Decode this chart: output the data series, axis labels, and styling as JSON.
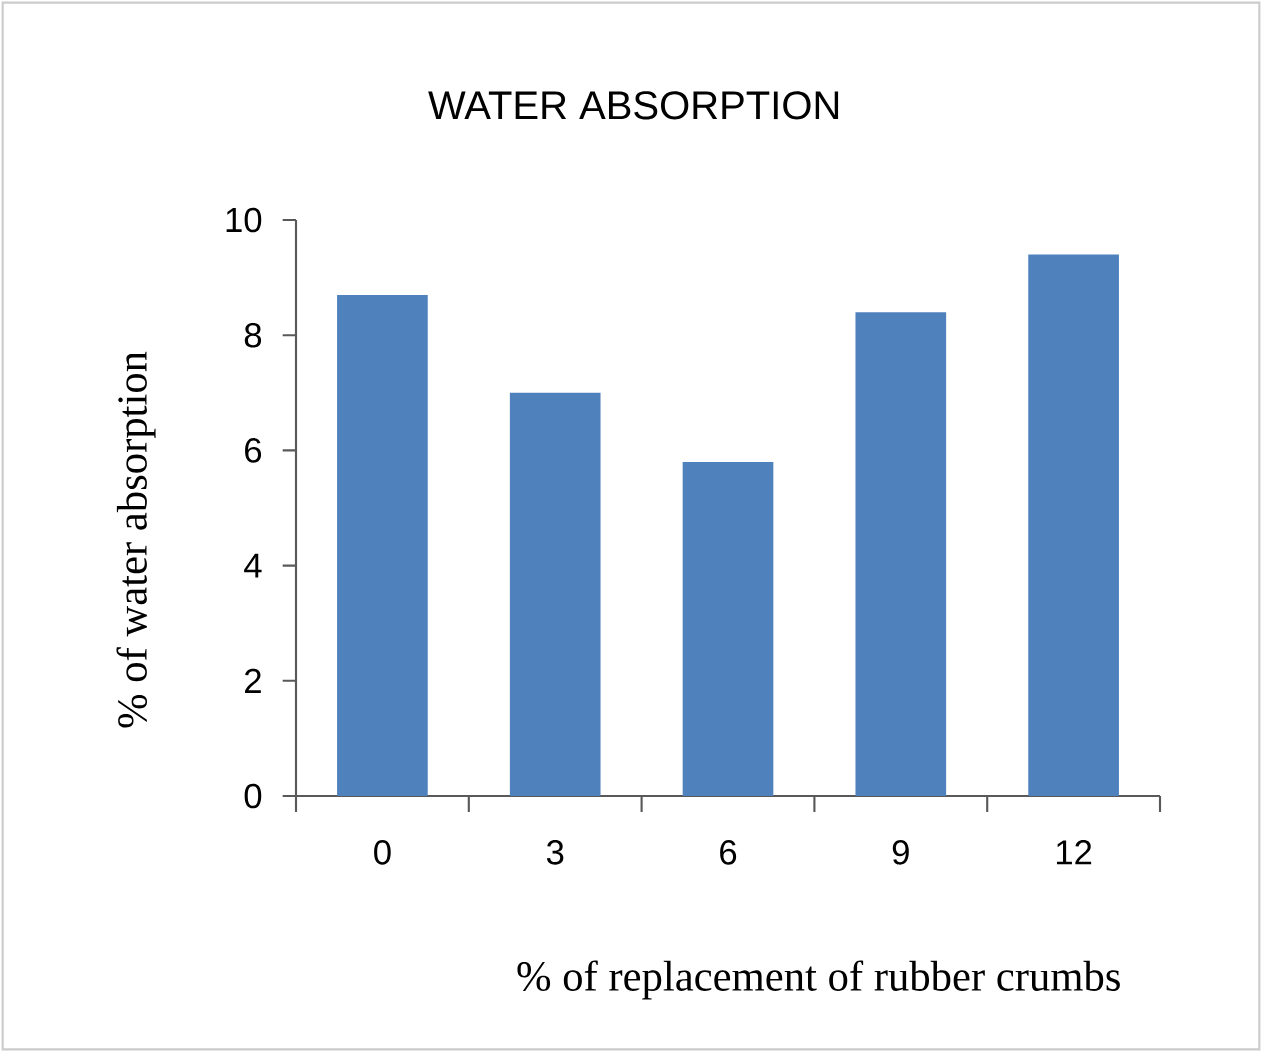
{
  "chart_data": {
    "type": "bar",
    "title": "WATER ABSORPTION",
    "xlabel": "% of replacement of rubber crumbs",
    "ylabel": "% of water absorption",
    "categories": [
      "0",
      "3",
      "6",
      "9",
      "12"
    ],
    "values": [
      8.7,
      7.0,
      5.8,
      8.4,
      9.4
    ],
    "color": "#4f81bd",
    "ylim": [
      0,
      10
    ],
    "yticks": [
      0,
      2,
      4,
      6,
      8,
      10
    ],
    "grid": false
  }
}
